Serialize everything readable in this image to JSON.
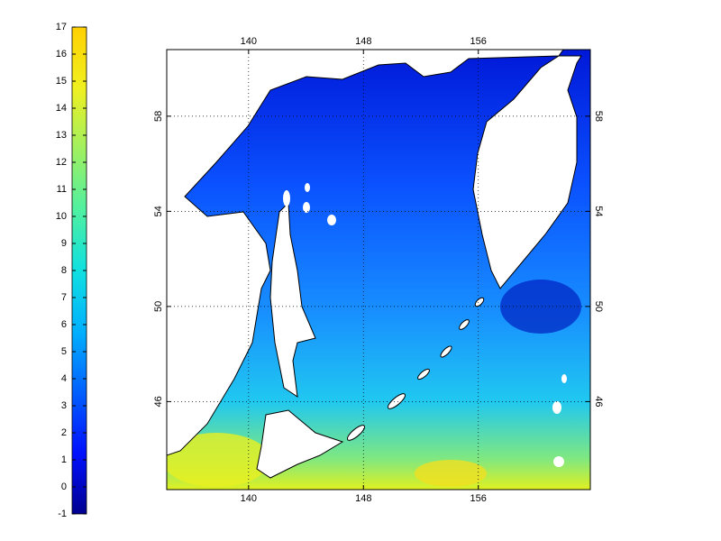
{
  "colorbar": {
    "ticks": [
      -1,
      0,
      1,
      2,
      3,
      4,
      5,
      6,
      7,
      8,
      9,
      10,
      11,
      12,
      13,
      14,
      15,
      16,
      17
    ],
    "lim": [
      -1,
      17
    ],
    "colors": [
      "#00008f",
      "#0010ff",
      "#0060ff",
      "#00b0ff",
      "#10e0e0",
      "#50f0a0",
      "#a0f060",
      "#f0f020",
      "#ffd000"
    ]
  },
  "map": {
    "xlim": [
      134.3,
      163.8
    ],
    "ylim": [
      42.3,
      60.8
    ],
    "xticks": [
      140,
      148,
      156
    ],
    "yticks": [
      46,
      50,
      54,
      58
    ],
    "grid": true
  }
}
